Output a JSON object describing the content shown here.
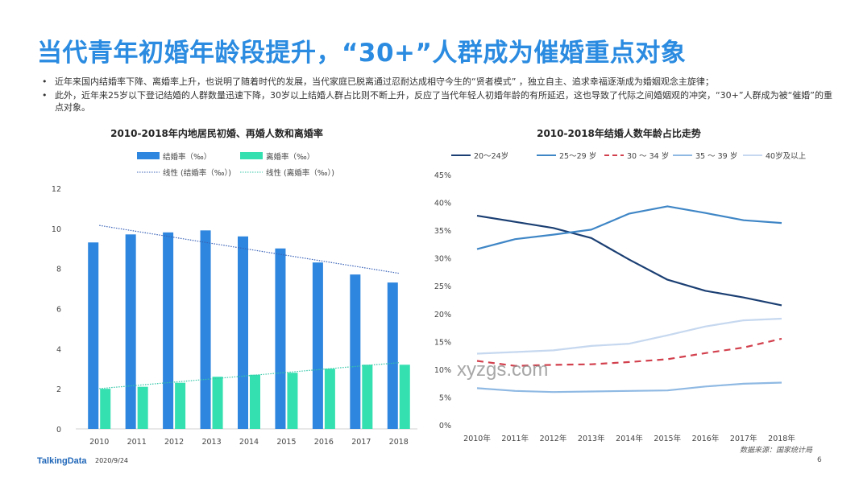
{
  "title": "当代青年初婚年龄段提升，“30+”人群成为催婚重点对象",
  "bullets": [
    "近年来国内结婚率下降、离婚率上升，也说明了随着时代的发展，当代家庭已脱离通过忍耐达成相守今生的“贤者模式”  ，独立自主、追求幸福逐渐成为婚姻观念主旋律；",
    "此外，近年来25岁以下登记结婚的人群数量迅速下降，30岁以上结婚人群占比则不断上升，反应了当代年轻人初婚年龄的有所延迟，这也导致了代际之间婚姻观的冲突，“30+”人群成为被“催婚”的重点对象。"
  ],
  "bullet_symbol": "•",
  "chart_data": [
    {
      "type": "bar",
      "title": "2010-2018年内地居民初婚、再婚人数和离婚率",
      "categories": [
        "2010",
        "2011",
        "2012",
        "2013",
        "2014",
        "2015",
        "2016",
        "2017",
        "2018"
      ],
      "series": [
        {
          "name": "结婚率（‰）",
          "values": [
            9.3,
            9.7,
            9.8,
            9.9,
            9.6,
            9.0,
            8.3,
            7.7,
            7.3
          ],
          "color": "#2e86de"
        },
        {
          "name": "离婚率（‰）",
          "values": [
            2.0,
            2.1,
            2.3,
            2.6,
            2.7,
            2.8,
            3.0,
            3.2,
            3.2
          ],
          "color": "#35e0b0"
        }
      ],
      "trendlines": [
        {
          "name": "线性 (结婚率（‰）)",
          "color": "#3a63b8"
        },
        {
          "name": "线性 (离婚率（‰）)",
          "color": "#35c7a8"
        }
      ],
      "yticks": [
        "0",
        "2",
        "4",
        "6",
        "8",
        "10",
        "12"
      ],
      "ylim": [
        0,
        12
      ]
    },
    {
      "type": "line",
      "title": "2010-2018年结婚人数年龄占比走势",
      "categories": [
        "2010年",
        "2011年",
        "2012年",
        "2013年",
        "2014年",
        "2015年",
        "2016年",
        "2017年",
        "2018年"
      ],
      "series": [
        {
          "name": "20～24岁",
          "values": [
            37.6,
            36.5,
            35.4,
            33.6,
            29.7,
            26.1,
            24.1,
            22.9,
            21.5
          ],
          "color": "#1b3f73",
          "dash": "solid",
          "width": 2.2
        },
        {
          "name": "25～29 岁",
          "values": [
            31.6,
            33.4,
            34.2,
            35.1,
            38.0,
            39.3,
            38.1,
            36.8,
            36.3
          ],
          "color": "#3f86c6",
          "dash": "solid",
          "width": 2.2
        },
        {
          "name": "30 ～ 34 岁",
          "values": [
            11.5,
            10.6,
            10.8,
            10.9,
            11.3,
            11.8,
            12.9,
            13.9,
            15.5
          ],
          "color": "#d2404d",
          "dash": "dashed",
          "width": 2.2
        },
        {
          "name": "35 ～ 39 岁",
          "values": [
            6.6,
            6.1,
            5.9,
            6.0,
            6.1,
            6.2,
            6.9,
            7.4,
            7.6
          ],
          "color": "#8fb9e3",
          "dash": "solid",
          "width": 2.2
        },
        {
          "name": "40岁及以上",
          "values": [
            12.8,
            13.1,
            13.4,
            14.2,
            14.6,
            16.1,
            17.7,
            18.8,
            19.1
          ],
          "color": "#c6d8ef",
          "dash": "solid",
          "width": 2.2
        }
      ],
      "yticks": [
        "0%",
        "5%",
        "10%",
        "15%",
        "20%",
        "25%",
        "30%",
        "35%",
        "40%",
        "45%"
      ],
      "ylim": [
        0,
        45
      ]
    }
  ],
  "source": "数据来源：国家统计局",
  "watermark": "xyzgs.com",
  "footer": {
    "logo": "TalkingData",
    "date": "2020/9/24",
    "page": "6"
  }
}
